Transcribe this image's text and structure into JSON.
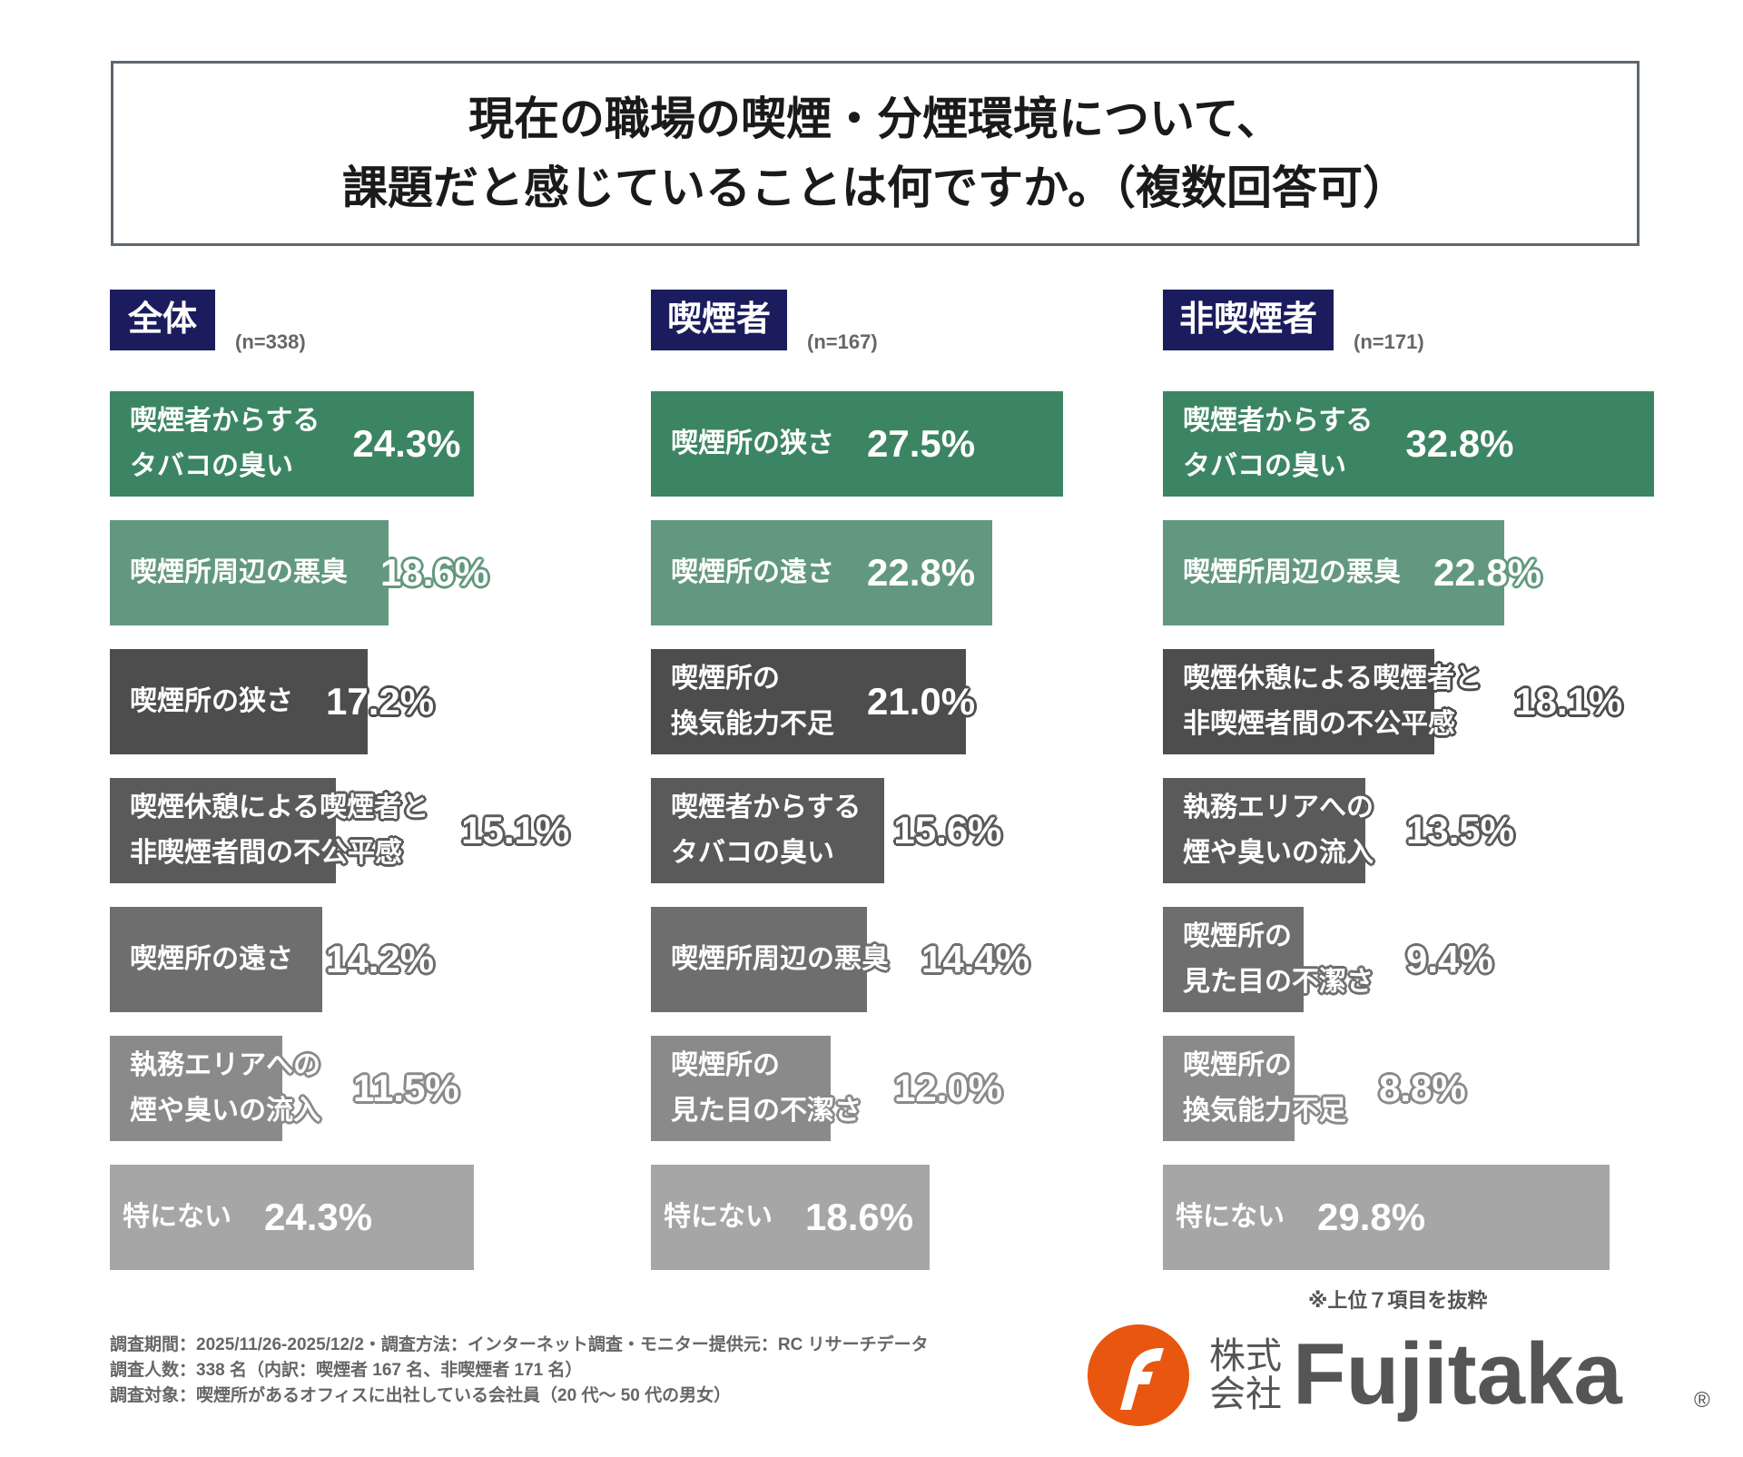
{
  "title": "現在の職場の喫煙・分煙環境について、\n課題だと感じていることは何ですか。（複数回答可）",
  "chart_data": [
    {
      "type": "bar",
      "orientation": "horizontal",
      "group": "全体",
      "n": "(n=338)",
      "unit": "%",
      "categories": [
        "喫煙者からする\nタバコの臭い",
        "喫煙所周辺の悪臭",
        "喫煙所の狭さ",
        "喫煙休憩による喫煙者と\n非喫煙者間の不公平感",
        "喫煙所の遠さ",
        "執務エリアへの\n煙や臭いの流入",
        "特にない"
      ],
      "values": [
        24.3,
        18.6,
        17.2,
        15.1,
        14.2,
        11.5,
        24.3
      ]
    },
    {
      "type": "bar",
      "orientation": "horizontal",
      "group": "喫煙者",
      "n": "(n=167)",
      "unit": "%",
      "categories": [
        "喫煙所の狭さ",
        "喫煙所の遠さ",
        "喫煙所の\n換気能力不足",
        "喫煙者からする\nタバコの臭い",
        "喫煙所周辺の悪臭",
        "喫煙所の\n見た目の不潔さ",
        "特にない"
      ],
      "values": [
        27.5,
        22.8,
        21.0,
        15.6,
        14.4,
        12.0,
        18.6
      ]
    },
    {
      "type": "bar",
      "orientation": "horizontal",
      "group": "非喫煙者",
      "n": "(n=171)",
      "unit": "%",
      "categories": [
        "喫煙者からする\nタバコの臭い",
        "喫煙所周辺の悪臭",
        "喫煙休憩による喫煙者と\n非喫煙者間の不公平感",
        "執務エリアへの\n煙や臭いの流入",
        "喫煙所の\n見た目の不潔さ",
        "喫煙所の\n換気能力不足",
        "特にない"
      ],
      "values": [
        32.8,
        22.8,
        18.1,
        13.5,
        9.4,
        8.8,
        29.8
      ]
    }
  ],
  "colors": {
    "tag": "#1b1c5e",
    "rank": [
      "#3c8563",
      "#62987f",
      "#4d4d4d",
      "#5a5a5a",
      "#6e6e6e",
      "#8a8a8a",
      "#a6a6a6"
    ],
    "logo": "#e8560f",
    "logo_text": "#555555"
  },
  "note": "※上位７項目を抜粋",
  "footer": [
    "調査期間：2025/11/26-2025/12/2・調査方法：インターネット調査・モニター提供元：RC リサーチデータ",
    "調査人数：338 名（内訳：喫煙者 167 名、非喫煙者 171 名）",
    "調査対象：喫煙所があるオフィスに出社している会社員（20 代～ 50 代の男女）"
  ],
  "logo": {
    "prefix": "株式\n会社",
    "name": "Fujitaka",
    "mark": "®"
  }
}
